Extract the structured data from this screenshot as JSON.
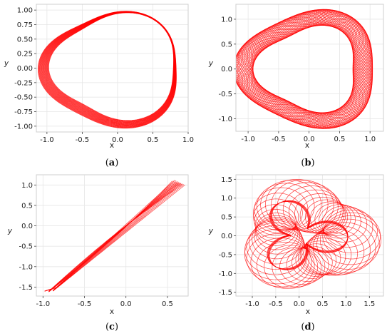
{
  "chart_data": [
    {
      "type": "line",
      "curve": "trefoil-loop",
      "xlabel": "x",
      "ylabel": "y",
      "xlim": [
        -1.15,
        1.0
      ],
      "ylim": [
        -1.1,
        1.1
      ],
      "xticks": [
        "-1.0",
        "-0.5",
        "0.0",
        "0.5",
        "1.0"
      ],
      "xtick_values": [
        -1.0,
        -0.5,
        0.0,
        0.5,
        1.0
      ],
      "yticks": [
        "1.00",
        "0.75",
        "0.50",
        "0.25",
        "0.00",
        "-0.25",
        "-0.50",
        "-0.75",
        "-1.00"
      ],
      "ytick_values": [
        1.0,
        0.75,
        0.5,
        0.25,
        0.0,
        -0.25,
        -0.5,
        -0.75,
        -1.0
      ],
      "color": "#ff0000",
      "caption_open": "(",
      "caption_letter": "a",
      "caption_close": ")"
    },
    {
      "type": "line",
      "curve": "rounded-triangle-band",
      "xlabel": "x",
      "ylabel": "y",
      "xlim": [
        -1.2,
        1.22
      ],
      "ylim": [
        -1.25,
        1.3
      ],
      "xticks": [
        "-1.0",
        "-0.5",
        "0.0",
        "0.5",
        "1.0"
      ],
      "xtick_values": [
        -1.0,
        -0.5,
        0.0,
        0.5,
        1.0
      ],
      "yticks": [
        "1.0",
        "0.5",
        "0.0",
        "-0.5",
        "-1.0"
      ],
      "ytick_values": [
        1.0,
        0.5,
        0.0,
        -0.5,
        -1.0
      ],
      "color": "#ff0000",
      "caption_open": "(",
      "caption_letter": "b",
      "caption_close": ")"
    },
    {
      "type": "line",
      "curve": "diagonal-band",
      "xlabel": "x",
      "ylabel": "y",
      "xlim": [
        -1.08,
        0.75
      ],
      "ylim": [
        -1.72,
        1.25
      ],
      "xticks": [
        "-1.0",
        "-0.5",
        "0.0",
        "0.5"
      ],
      "xtick_values": [
        -1.0,
        -0.5,
        0.0,
        0.5
      ],
      "yticks": [
        "1.0",
        "0.5",
        "0.0",
        "-0.5",
        "-1.0",
        "-1.5"
      ],
      "ytick_values": [
        1.0,
        0.5,
        0.0,
        -0.5,
        -1.0,
        -1.5
      ],
      "color": "#ff0000",
      "caption_open": "(",
      "caption_letter": "c",
      "caption_close": ")"
    },
    {
      "type": "line",
      "curve": "epicycle-circles",
      "xlabel": "x",
      "ylabel": "y",
      "xlim": [
        -1.35,
        1.8
      ],
      "ylim": [
        -1.6,
        1.62
      ],
      "xticks": [
        "-1.0",
        "-0.5",
        "0.0",
        "0.5",
        "1.0",
        "1.5"
      ],
      "xtick_values": [
        -1.0,
        -0.5,
        0.0,
        0.5,
        1.0,
        1.5
      ],
      "yticks": [
        "1.5",
        "1.0",
        "0.5",
        "0.0",
        "-0.5",
        "-1.0",
        "-1.5"
      ],
      "ytick_values": [
        1.5,
        1.0,
        0.5,
        0.0,
        -0.5,
        -1.0,
        -1.5
      ],
      "color": "#ff0000",
      "caption_open": "(",
      "caption_letter": "d",
      "caption_close": ")"
    }
  ]
}
